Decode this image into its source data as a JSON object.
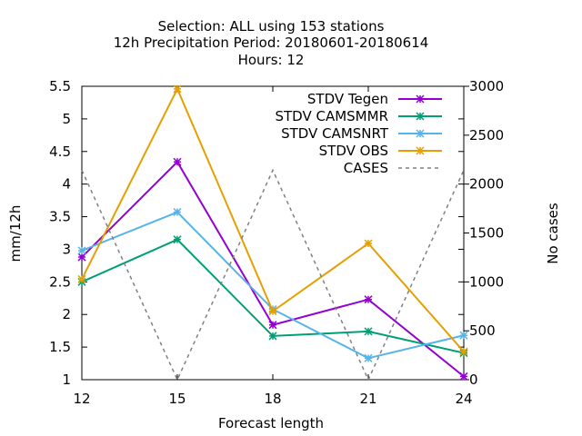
{
  "chart_data": {
    "type": "line",
    "title_lines": [
      "Selection: ALL using   153 stations",
      "12h Precipitation    Period: 20180601-20180614",
      "Hours:  12"
    ],
    "xlabel": "Forecast length",
    "ylabel": "mm/12h",
    "y2label": "No cases",
    "x": [
      12,
      15,
      18,
      21,
      24
    ],
    "x_ticks": [
      "12",
      "15",
      "18",
      "21",
      "24"
    ],
    "xlim": [
      12,
      24
    ],
    "ylim": [
      1,
      5.5
    ],
    "y_ticks": [
      "1",
      "1.5",
      "2",
      "2.5",
      "3",
      "3.5",
      "4",
      "4.5",
      "5",
      "5.5"
    ],
    "y2lim": [
      0,
      3000
    ],
    "y2_ticks": [
      "0",
      "500",
      "1000",
      "1500",
      "2000",
      "2500",
      "3000"
    ],
    "legend_position": "top-right",
    "series": [
      {
        "name": "STDV Tegen",
        "color": "#9400d3",
        "axis": "y",
        "style": "solid",
        "marker": "x",
        "values": [
          2.88,
          4.34,
          1.84,
          2.23,
          1.05
        ]
      },
      {
        "name": "STDV CAMSMMR",
        "color": "#009e73",
        "axis": "y",
        "style": "solid",
        "marker": "x",
        "values": [
          2.5,
          3.15,
          1.67,
          1.74,
          1.41
        ]
      },
      {
        "name": "STDV CAMSNRT",
        "color": "#56b4e9",
        "axis": "y",
        "style": "solid",
        "marker": "x",
        "values": [
          2.98,
          3.57,
          2.08,
          1.33,
          1.68
        ]
      },
      {
        "name": "STDV OBS",
        "color": "#e69f00",
        "axis": "y",
        "style": "solid",
        "marker": "x",
        "values": [
          2.54,
          5.46,
          2.05,
          3.09,
          1.43
        ]
      },
      {
        "name": "CASES",
        "color": "#808080",
        "axis": "y2",
        "style": "dashed",
        "marker": "none",
        "values": [
          2142,
          0,
          2142,
          0,
          2142
        ]
      }
    ]
  }
}
